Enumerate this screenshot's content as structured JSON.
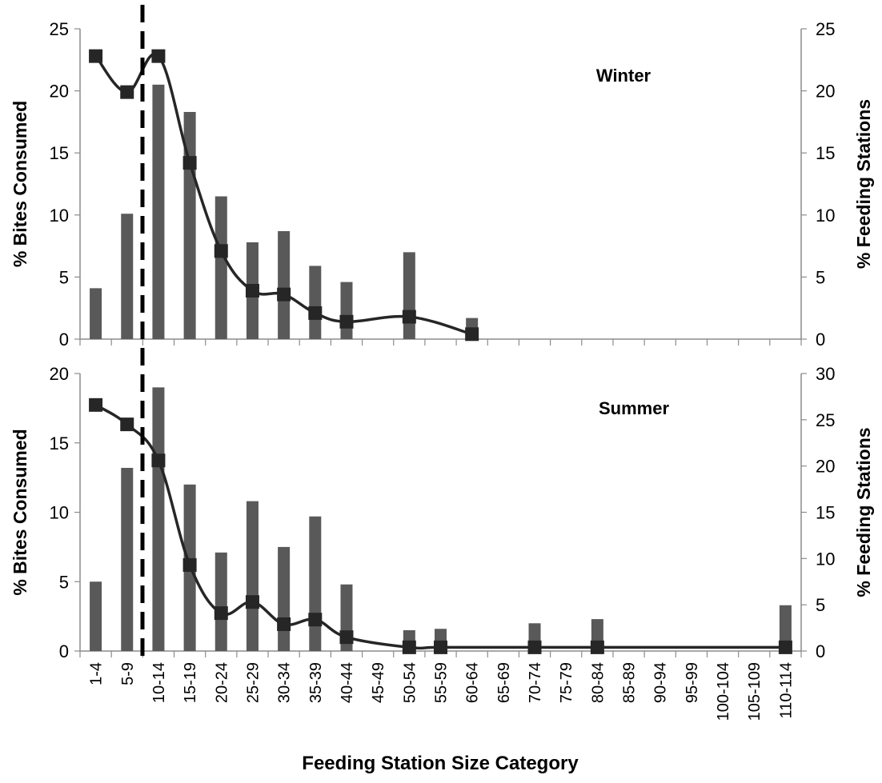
{
  "chart_data": [
    {
      "type": "bar",
      "title": "Winter",
      "categories": [
        "1-4",
        "5-9",
        "10-14",
        "15-19",
        "20-24",
        "25-29",
        "30-34",
        "35-39",
        "40-44",
        "45-49",
        "50-54",
        "55-59",
        "60-64",
        "65-69",
        "70-74",
        "75-79",
        "80-84",
        "85-89",
        "90-94",
        "95-99",
        "100-104",
        "105-109",
        "110-114"
      ],
      "ylabel": "% Bites Consumed",
      "y2label": "% Feeding Stations",
      "ylim": [
        0,
        25
      ],
      "y2lim": [
        0,
        25
      ],
      "yticks": [
        0,
        5,
        10,
        15,
        20,
        25
      ],
      "y2ticks": [
        0,
        5,
        10,
        15,
        20,
        25
      ],
      "series": [
        {
          "name": "",
          "axis": "left",
          "style": "bar",
          "values": [
            4.1,
            10.1,
            20.5,
            18.3,
            11.5,
            7.8,
            8.7,
            5.9,
            4.6,
            null,
            7.0,
            null,
            1.7,
            null,
            null,
            null,
            null,
            null,
            null,
            null,
            null,
            null,
            null
          ]
        },
        {
          "name": "",
          "axis": "right",
          "style": "line-square",
          "values": [
            22.8,
            19.9,
            22.8,
            14.2,
            7.1,
            3.9,
            3.6,
            2.1,
            1.4,
            null,
            1.8,
            null,
            0.4,
            null,
            null,
            null,
            null,
            null,
            null,
            null,
            null,
            null,
            null
          ]
        }
      ],
      "colors": {
        "bar": "#595959",
        "line": "#262626"
      }
    },
    {
      "type": "bar",
      "title": "Summer",
      "categories": [
        "1-4",
        "5-9",
        "10-14",
        "15-19",
        "20-24",
        "25-29",
        "30-34",
        "35-39",
        "40-44",
        "45-49",
        "50-54",
        "55-59",
        "60-64",
        "65-69",
        "70-74",
        "75-79",
        "80-84",
        "85-89",
        "90-94",
        "95-99",
        "100-104",
        "105-109",
        "110-114"
      ],
      "ylabel": "% Bites Consumed",
      "y2label": "% Feeding Stations",
      "xlabel": "Feeding Station Size Category",
      "ylim": [
        0,
        20
      ],
      "y2lim": [
        0,
        30
      ],
      "yticks": [
        0,
        5,
        10,
        15,
        20
      ],
      "y2ticks": [
        0,
        5,
        10,
        15,
        20,
        25,
        30
      ],
      "series": [
        {
          "name": "",
          "axis": "left",
          "style": "bar",
          "values": [
            5.0,
            13.2,
            19.0,
            12.0,
            7.1,
            10.8,
            7.5,
            9.7,
            4.8,
            null,
            1.5,
            1.6,
            null,
            null,
            2.0,
            null,
            2.3,
            null,
            null,
            null,
            null,
            null,
            3.3
          ]
        },
        {
          "name": "",
          "axis": "right",
          "style": "line-square",
          "values": [
            26.6,
            24.5,
            20.6,
            9.3,
            4.1,
            5.3,
            2.9,
            3.4,
            1.5,
            null,
            0.4,
            0.4,
            null,
            null,
            0.4,
            null,
            0.4,
            null,
            null,
            null,
            null,
            null,
            0.4
          ]
        }
      ],
      "colors": {
        "bar": "#595959",
        "line": "#262626"
      }
    }
  ]
}
